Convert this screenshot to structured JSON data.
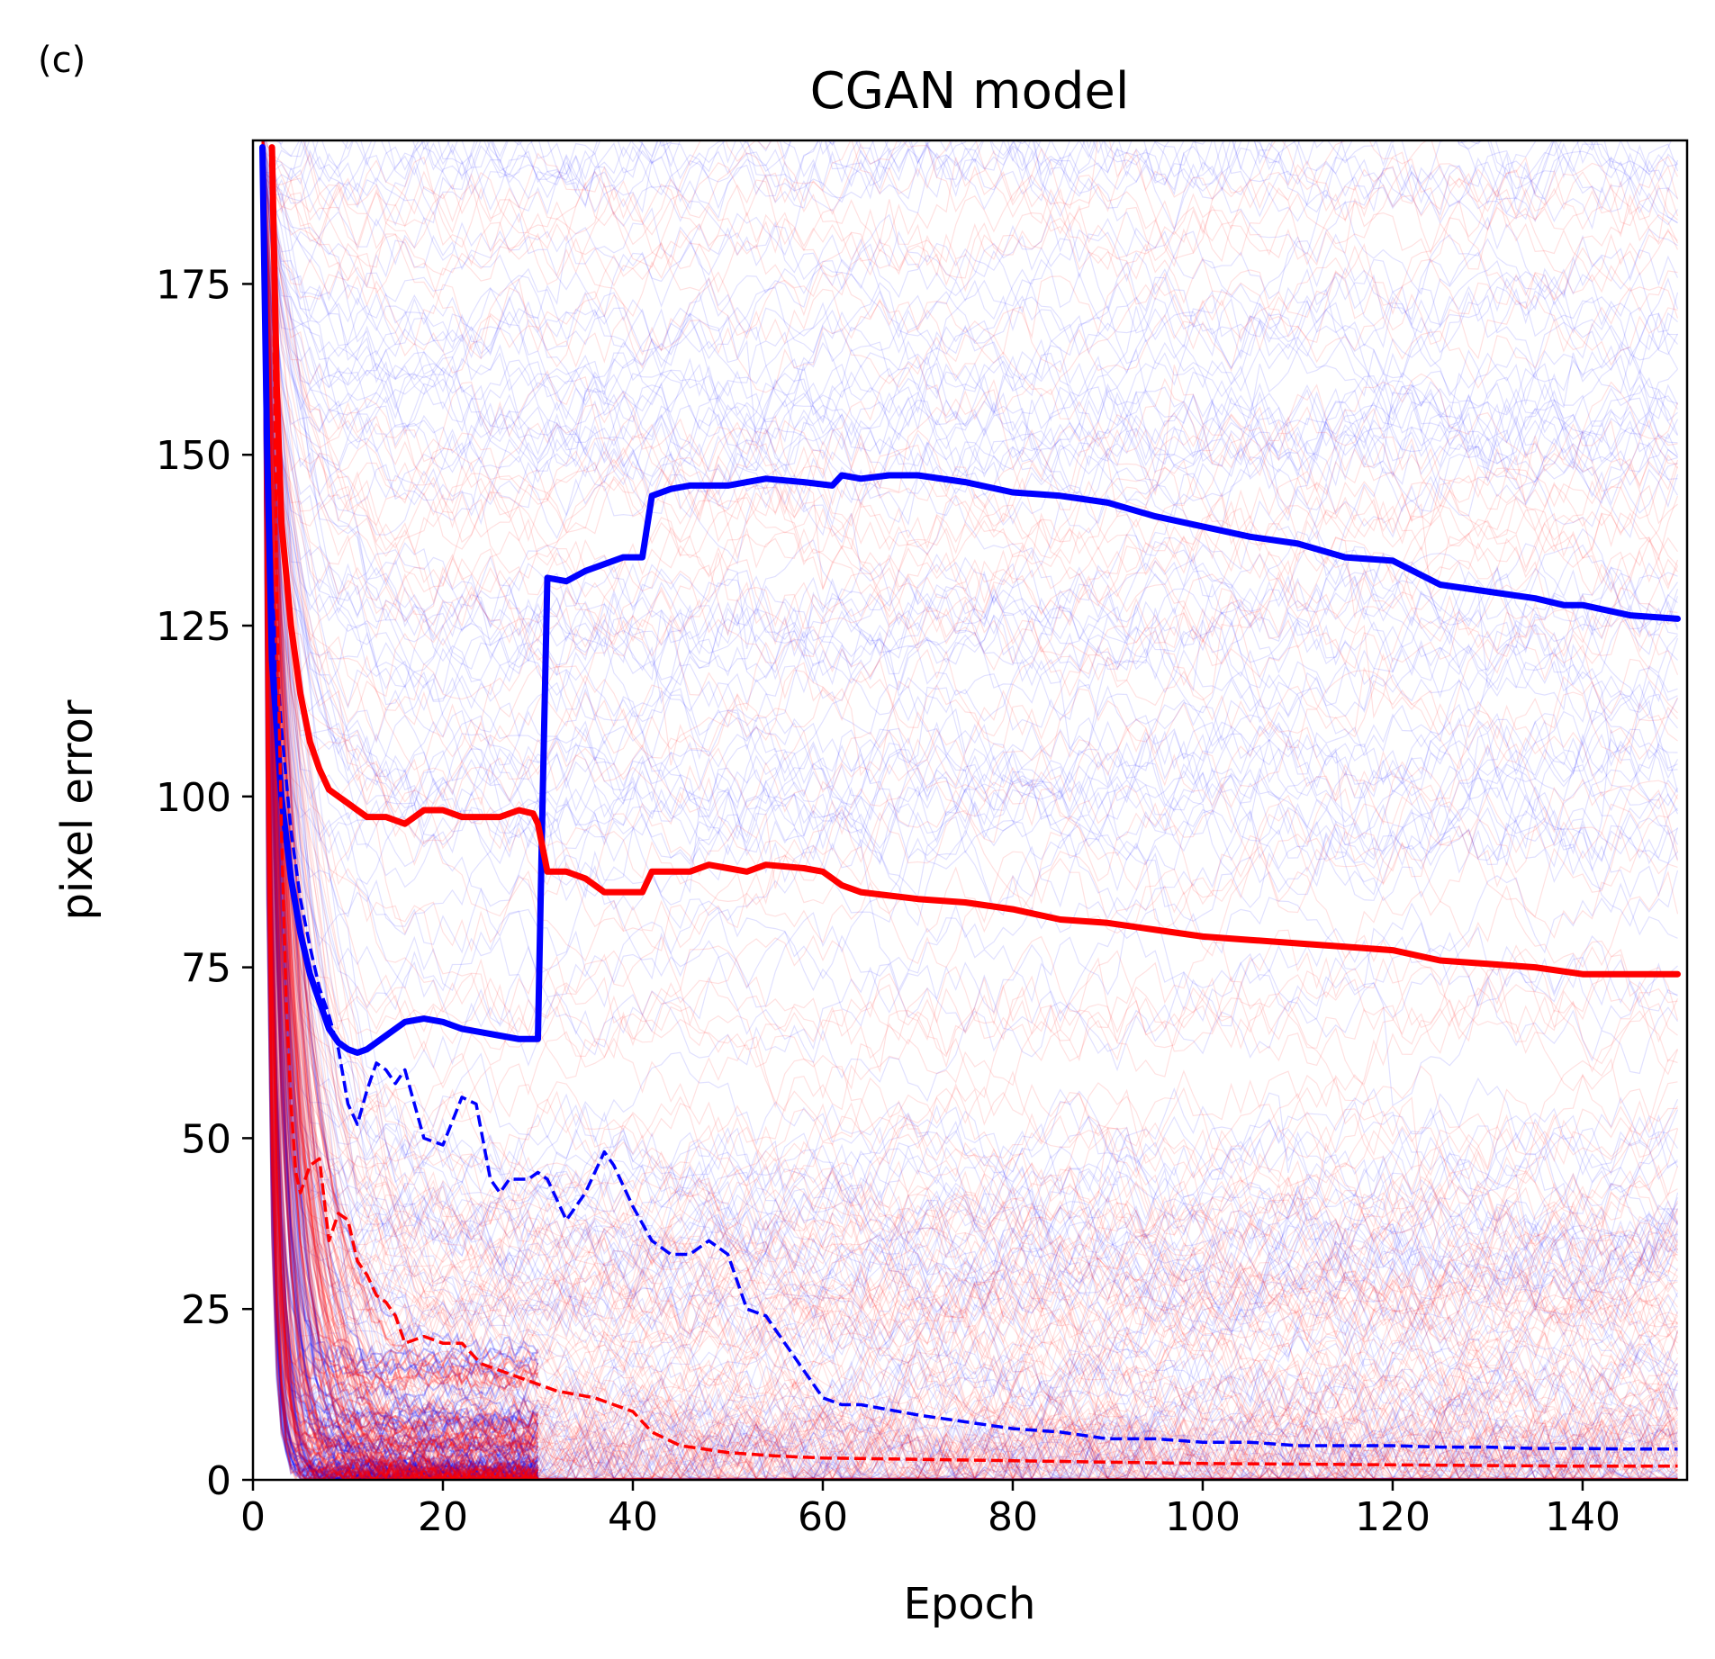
{
  "panel_label": "(c)",
  "chart_data": {
    "type": "line",
    "title": "CGAN model",
    "xlabel": "Epoch",
    "ylabel": "pixel error",
    "xlim": [
      0,
      151
    ],
    "ylim": [
      0,
      196
    ],
    "xticks": [
      0,
      20,
      40,
      60,
      80,
      100,
      120,
      140
    ],
    "yticks": [
      0,
      25,
      50,
      75,
      100,
      125,
      150,
      175
    ],
    "grid": false,
    "colors": {
      "blue": "#0000ff",
      "red": "#ff0000"
    },
    "background_traces": {
      "description_note": "many faint individual trajectories in red and blue",
      "count_per_color": 140
    },
    "series": [
      {
        "name": "blue-solid",
        "color": "#0000ff",
        "style": "solid",
        "x": [
          1,
          1.5,
          2,
          3,
          4,
          5,
          6,
          7,
          8,
          9,
          10,
          11,
          12,
          14,
          16,
          18,
          20,
          22,
          24,
          26,
          28,
          30,
          30.5,
          31,
          33,
          35,
          37,
          39,
          41,
          42,
          44,
          46,
          50,
          52,
          54,
          58,
          61,
          62,
          64,
          67,
          70,
          75,
          80,
          85,
          90,
          95,
          100,
          105,
          110,
          115,
          120,
          125,
          130,
          135,
          138,
          140,
          145,
          150
        ],
        "y": [
          195,
          150,
          120,
          100,
          88,
          80,
          74,
          70,
          66,
          64,
          63,
          62.5,
          63,
          65,
          67,
          67.5,
          67,
          66,
          65.5,
          65,
          64.5,
          64.5,
          100,
          132,
          131.5,
          133,
          134,
          135,
          135,
          144,
          145,
          145.5,
          145.5,
          146,
          146.5,
          146,
          145.5,
          147,
          146.5,
          147,
          147,
          146,
          144.5,
          144,
          143,
          141,
          139.5,
          138,
          137,
          135,
          134.5,
          131,
          130,
          129,
          128,
          128,
          126.5,
          126
        ]
      },
      {
        "name": "red-solid",
        "color": "#ff0000",
        "style": "solid",
        "x": [
          2,
          2.5,
          3,
          4,
          5,
          6,
          7,
          8,
          9,
          10,
          11,
          12,
          14,
          16,
          18,
          20,
          22,
          24,
          26,
          28,
          29.5,
          30,
          31,
          33,
          35,
          37,
          39,
          41,
          42,
          44,
          46,
          48,
          50,
          52,
          54,
          58,
          60,
          62,
          64,
          70,
          75,
          80,
          85,
          90,
          95,
          100,
          105,
          110,
          115,
          120,
          125,
          130,
          135,
          140,
          145,
          150
        ],
        "y": [
          195,
          160,
          140,
          125,
          115,
          108,
          104,
          101,
          100,
          99,
          98,
          97,
          97,
          96,
          98,
          98,
          97,
          97,
          97,
          98,
          97.5,
          96,
          89,
          89,
          88,
          86,
          86,
          86,
          89,
          89,
          89,
          90,
          89.5,
          89,
          90,
          89.5,
          89,
          87,
          86,
          85,
          84.5,
          83.5,
          82,
          81.5,
          80.5,
          79.5,
          79,
          78.5,
          78,
          77.5,
          76,
          75.5,
          75,
          74,
          74,
          74
        ]
      },
      {
        "name": "blue-dashed",
        "color": "#0000ff",
        "style": "dashed",
        "x": [
          1,
          1.5,
          2,
          3,
          4,
          5,
          6,
          7,
          8,
          9,
          10,
          11,
          12,
          13,
          14,
          15,
          16,
          18,
          20,
          22,
          23.5,
          25,
          26,
          27,
          29,
          30,
          31,
          33,
          35,
          37,
          38,
          40,
          42,
          44,
          46,
          48,
          50,
          52,
          54,
          56,
          58,
          60,
          62,
          64,
          70,
          75,
          80,
          85,
          90,
          95,
          100,
          105,
          110,
          115,
          120,
          125,
          130,
          135,
          140,
          145,
          150
        ],
        "y": [
          195,
          160,
          130,
          110,
          95,
          85,
          78,
          72,
          68,
          63,
          55,
          52,
          57,
          61,
          60,
          58,
          60,
          50,
          49,
          56,
          55,
          44,
          42,
          44,
          44,
          45,
          44,
          38,
          42,
          48,
          46,
          40,
          35,
          33,
          33,
          35,
          33,
          25,
          24,
          20,
          16,
          12,
          11,
          11,
          9.5,
          8.5,
          7.5,
          7,
          6,
          6,
          5.5,
          5.5,
          5,
          5,
          5,
          4.8,
          4.8,
          4.6,
          4.6,
          4.5,
          4.5
        ]
      },
      {
        "name": "red-dashed",
        "color": "#ff0000",
        "style": "dashed",
        "x": [
          2,
          2.5,
          3,
          3.5,
          4,
          4.5,
          5,
          6,
          7,
          8,
          9,
          10,
          11,
          12,
          13,
          14,
          15,
          16,
          18,
          20,
          22,
          24,
          26,
          28,
          30,
          32,
          34,
          36,
          38,
          40,
          42,
          45,
          50,
          55,
          60,
          70,
          80,
          90,
          100,
          110,
          120,
          130,
          140,
          150
        ],
        "y": [
          195,
          130,
          95,
          70,
          55,
          45,
          42,
          46,
          47,
          35,
          39,
          38,
          32,
          30,
          27,
          26,
          24,
          20,
          21,
          20,
          20,
          17,
          16,
          15,
          14,
          13,
          12.5,
          12,
          11,
          10,
          7,
          5,
          4,
          3.5,
          3.2,
          3,
          2.8,
          2.6,
          2.4,
          2.3,
          2.2,
          2.1,
          2,
          2
        ]
      }
    ]
  }
}
